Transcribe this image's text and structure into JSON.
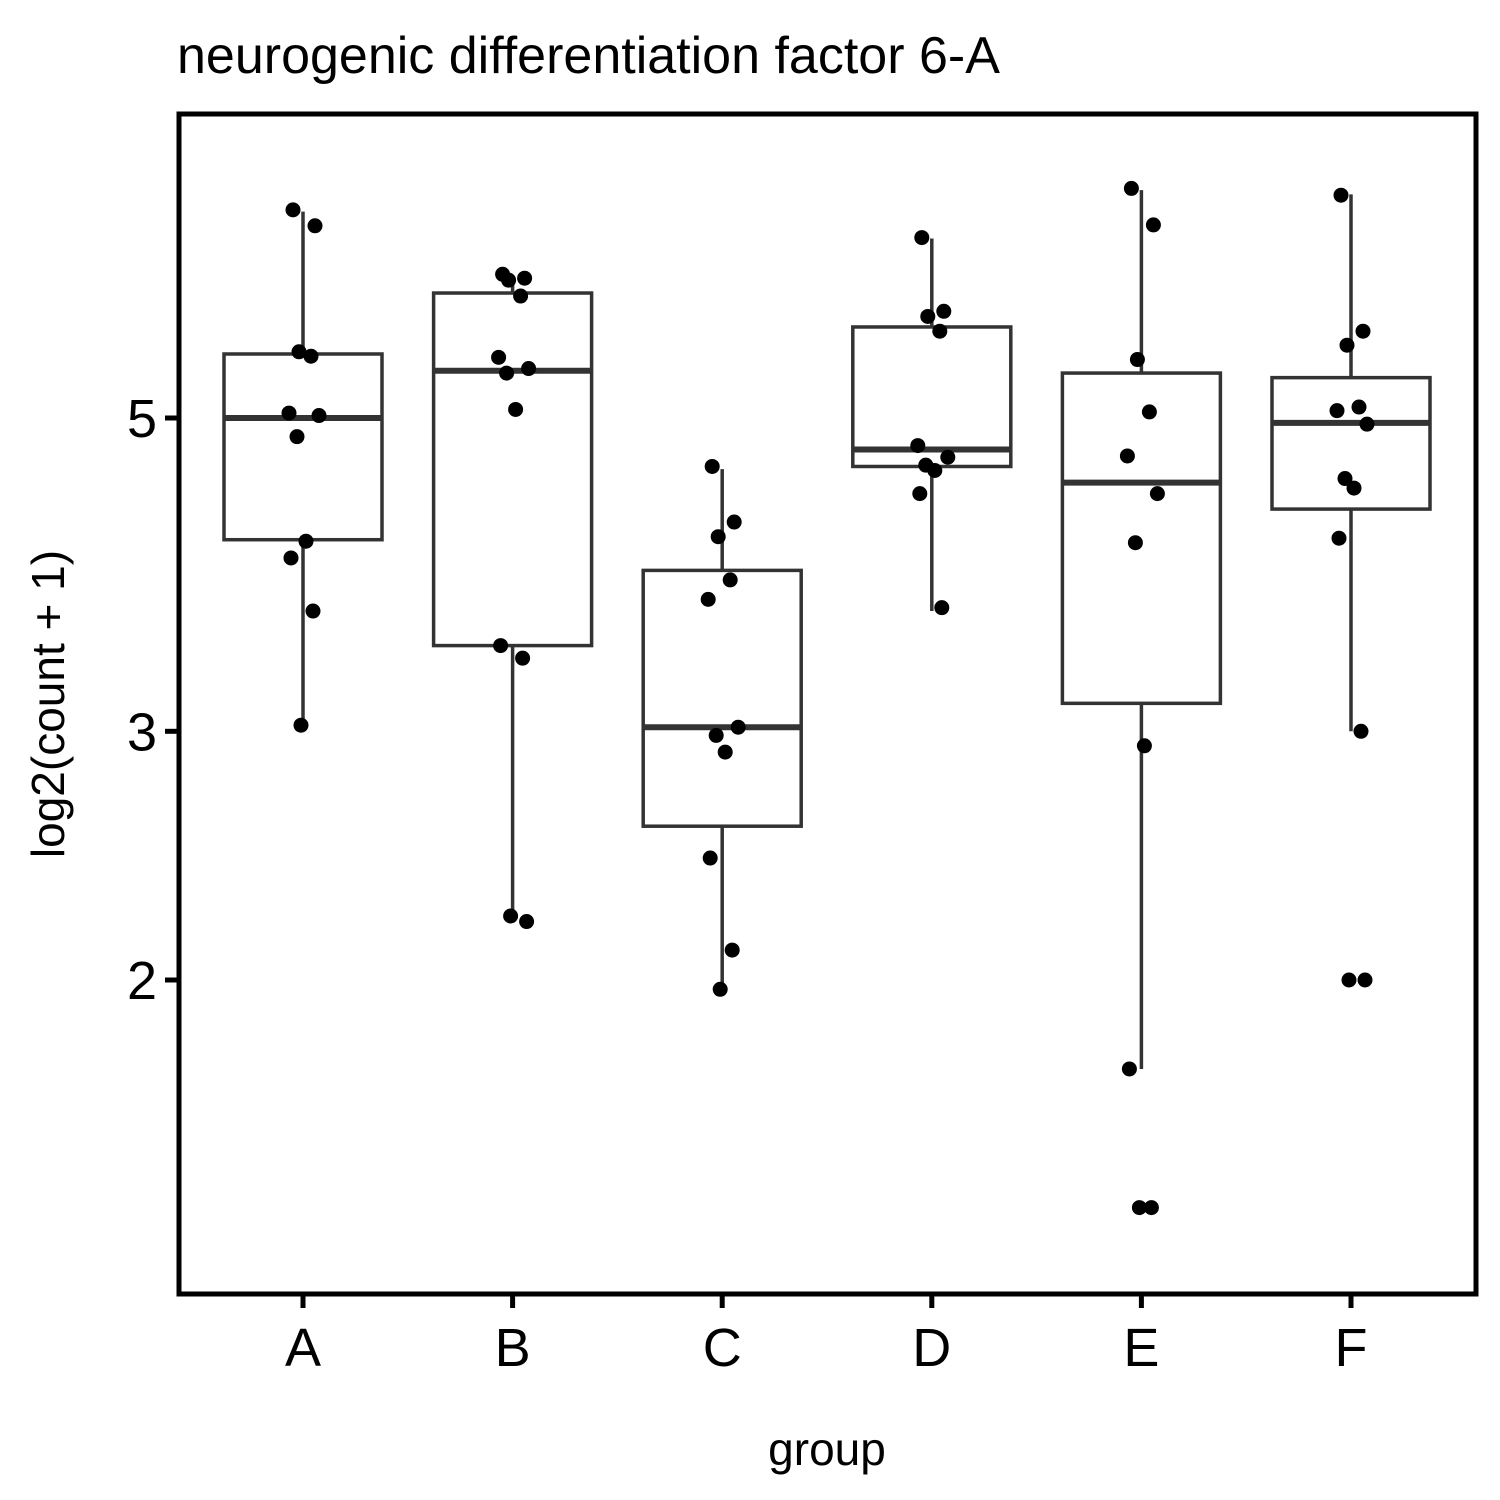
{
  "chart_data": {
    "type": "boxplot",
    "title": "neurogenic differentiation factor 6-A",
    "xlabel": "group",
    "ylabel": "log2(count + 1)",
    "y_scale": "log",
    "ylim": [
      1.3,
      7.3
    ],
    "y_ticks": [
      {
        "value": 2,
        "label": "2"
      },
      {
        "value": 3,
        "label": "3"
      },
      {
        "value": 5,
        "label": "5"
      }
    ],
    "grid": false,
    "legend": "none",
    "colors": {
      "box": "#333333",
      "point": "#000000",
      "panel_border": "#000000",
      "background": "#ffffff"
    },
    "categories": [
      "A",
      "B",
      "C",
      "D",
      "E",
      "F"
    ],
    "boxes": [
      {
        "group": "A",
        "whisker_low": 3.03,
        "q1": 4.1,
        "median": 5.0,
        "q3": 5.55,
        "whisker_high": 7.0
      },
      {
        "group": "B",
        "whisker_low": 2.22,
        "q1": 3.45,
        "median": 5.4,
        "q3": 6.13,
        "whisker_high": 6.3
      },
      {
        "group": "C",
        "whisker_low": 1.98,
        "q1": 2.57,
        "median": 3.02,
        "q3": 3.9,
        "whisker_high": 4.6
      },
      {
        "group": "D",
        "whisker_low": 3.65,
        "q1": 4.62,
        "median": 4.75,
        "q3": 5.8,
        "whisker_high": 6.7
      },
      {
        "group": "E",
        "whisker_low": 1.73,
        "q1": 3.14,
        "median": 4.5,
        "q3": 5.38,
        "whisker_high": 7.25
      },
      {
        "group": "F",
        "whisker_low": 3.0,
        "q1": 4.31,
        "median": 4.96,
        "q3": 5.34,
        "whisker_high": 7.2
      }
    ],
    "points": [
      {
        "group": "A",
        "values": [
          7.02,
          6.84,
          5.57,
          5.53,
          5.04,
          5.02,
          4.85,
          4.09,
          3.98,
          3.65,
          3.03
        ]
      },
      {
        "group": "B",
        "values": [
          6.32,
          6.28,
          6.26,
          6.1,
          5.52,
          5.42,
          5.38,
          5.07,
          3.45,
          3.38,
          2.22,
          2.2
        ]
      },
      {
        "group": "C",
        "values": [
          4.62,
          4.22,
          4.12,
          3.84,
          3.72,
          3.02,
          2.98,
          2.9,
          2.44,
          2.1,
          1.97
        ]
      },
      {
        "group": "D",
        "values": [
          6.71,
          5.95,
          5.9,
          5.76,
          4.78,
          4.69,
          4.63,
          4.59,
          4.42,
          3.67
        ]
      },
      {
        "group": "E",
        "values": [
          7.27,
          6.85,
          5.5,
          5.05,
          4.7,
          4.42,
          4.08,
          2.93,
          1.73,
          1.38,
          1.38
        ]
      },
      {
        "group": "F",
        "values": [
          7.19,
          5.76,
          5.63,
          5.09,
          5.06,
          4.95,
          4.53,
          4.46,
          4.11,
          3.0,
          2.0,
          2.0
        ]
      }
    ]
  }
}
